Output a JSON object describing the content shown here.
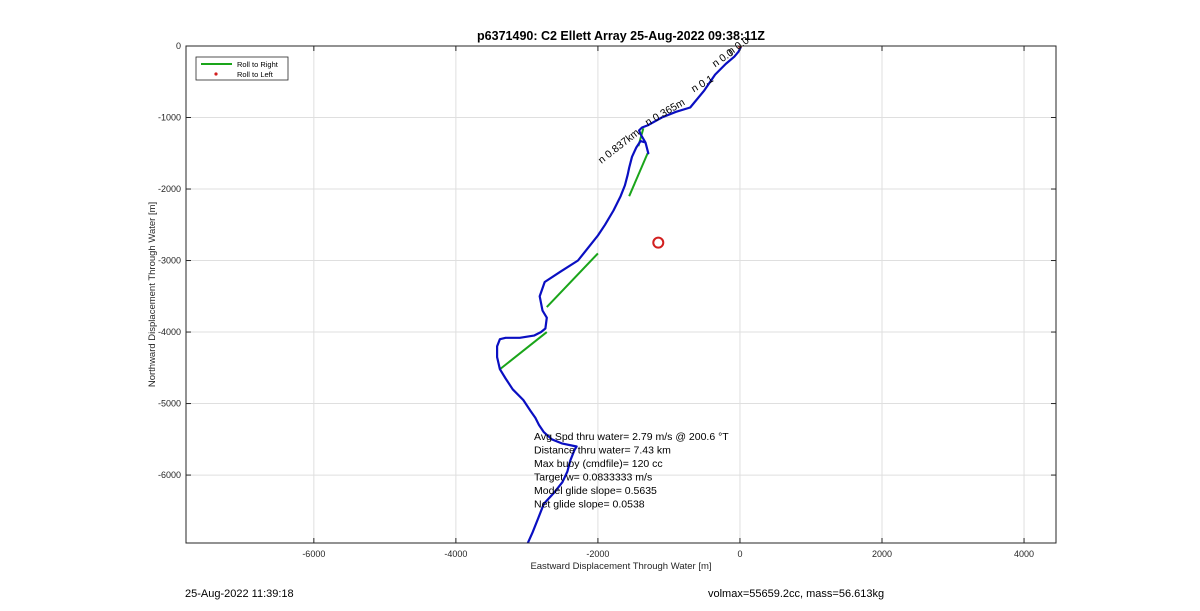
{
  "chart_data": {
    "type": "line",
    "title": "p6371490: C2 Ellett Array 25-Aug-2022 09:38:11Z",
    "xlabel": "Eastward Displacement Through Water [m]",
    "ylabel": "Northward Displacement Through Water [m]",
    "xlim": [
      -7800,
      4450
    ],
    "ylim": [
      -6950,
      0
    ],
    "xticks": [
      -6000,
      -4000,
      -2000,
      0,
      2000,
      4000
    ],
    "yticks": [
      0,
      -1000,
      -2000,
      -3000,
      -4000,
      -5000,
      -6000
    ],
    "grid": true,
    "legend": {
      "placement": "top-left",
      "entries": [
        {
          "name": "Roll to Right",
          "color": "#1aa51a",
          "style": "line"
        },
        {
          "name": "Roll to Left",
          "color": "#d21f1f",
          "style": "marker"
        }
      ]
    },
    "colors": {
      "track": "#0a0fc2",
      "roll_right": "#1aa51a",
      "target_marker": "#d21f1f"
    },
    "track_series": {
      "x": [
        -3000,
        -2920,
        -2840,
        -2760,
        -2620,
        -2500,
        -2430,
        -2390,
        -2330,
        -2300,
        -2500,
        -2650,
        -2760,
        -2830,
        -2880,
        -2950,
        -3050,
        -3200,
        -3300,
        -3380,
        -3420,
        -3420,
        -3380,
        -3300,
        -3100,
        -2900,
        -2800,
        -2740,
        -2720,
        -2780,
        -2820,
        -2750,
        -2520,
        -2280,
        -2120,
        -2000,
        -1900,
        -1780,
        -1680,
        -1620,
        -1580,
        -1560,
        -1520,
        -1460,
        -1400,
        -1330,
        -1290,
        -1330,
        -1400,
        -1420,
        -1380,
        -1300,
        -1100,
        -900,
        -700,
        -500,
        -350,
        -200,
        -80,
        -20,
        10
      ],
      "y": [
        -6980,
        -6800,
        -6600,
        -6400,
        -6250,
        -6100,
        -5950,
        -5800,
        -5650,
        -5600,
        -5560,
        -5500,
        -5400,
        -5300,
        -5200,
        -5100,
        -4950,
        -4800,
        -4650,
        -4520,
        -4350,
        -4200,
        -4100,
        -4080,
        -4080,
        -4050,
        -4000,
        -3950,
        -3800,
        -3700,
        -3500,
        -3300,
        -3150,
        -3000,
        -2800,
        -2650,
        -2500,
        -2300,
        -2100,
        -1950,
        -1800,
        -1700,
        -1550,
        -1420,
        -1330,
        -1350,
        -1500,
        -1350,
        -1230,
        -1180,
        -1140,
        -1110,
        -1000,
        -920,
        -860,
        -620,
        -400,
        -250,
        -150,
        -80,
        -20
      ]
    },
    "roll_right_segments": [
      {
        "x": [
          -3380,
          -2720
        ],
        "y": [
          -4520,
          -4000
        ]
      },
      {
        "x": [
          -2720,
          -2000
        ],
        "y": [
          -3650,
          -2900
        ]
      },
      {
        "x": [
          -1560,
          -1300
        ],
        "y": [
          -2100,
          -1500
        ]
      },
      {
        "x": [
          -1430,
          -1360
        ],
        "y": [
          -1400,
          -1150
        ]
      }
    ],
    "roll_left_points": {
      "x": [
        0
      ],
      "y": [
        0
      ]
    },
    "target_marker": {
      "x": -1150,
      "y": -2750
    },
    "annotations": [
      {
        "text": "n 0.837km",
        "x": -1950,
        "y": -1650,
        "angle": -38
      },
      {
        "text": "n 0.365m",
        "x": -1300,
        "y": -1120,
        "angle": -30
      },
      {
        "text": "n 0.1",
        "x": -650,
        "y": -650,
        "angle": -30
      },
      {
        "text": "n 0.0",
        "x": -350,
        "y": -300,
        "angle": -35
      },
      {
        "text": "n 0.0",
        "x": -130,
        "y": -130,
        "angle": -35
      }
    ],
    "stats": [
      "Avg Spd thru water=  2.79 m/s @ 200.6 °T",
      "Distance thru water=  7.43 km",
      "Max buoy (cmdfile)= 120 cc",
      "Target w= 0.0833333 m/s",
      "Model glide slope= 0.5635",
      "Net glide slope= 0.0538"
    ]
  },
  "footer": {
    "left": "25-Aug-2022 11:39:18",
    "right": "volmax=55659.2cc, mass=56.613kg"
  }
}
